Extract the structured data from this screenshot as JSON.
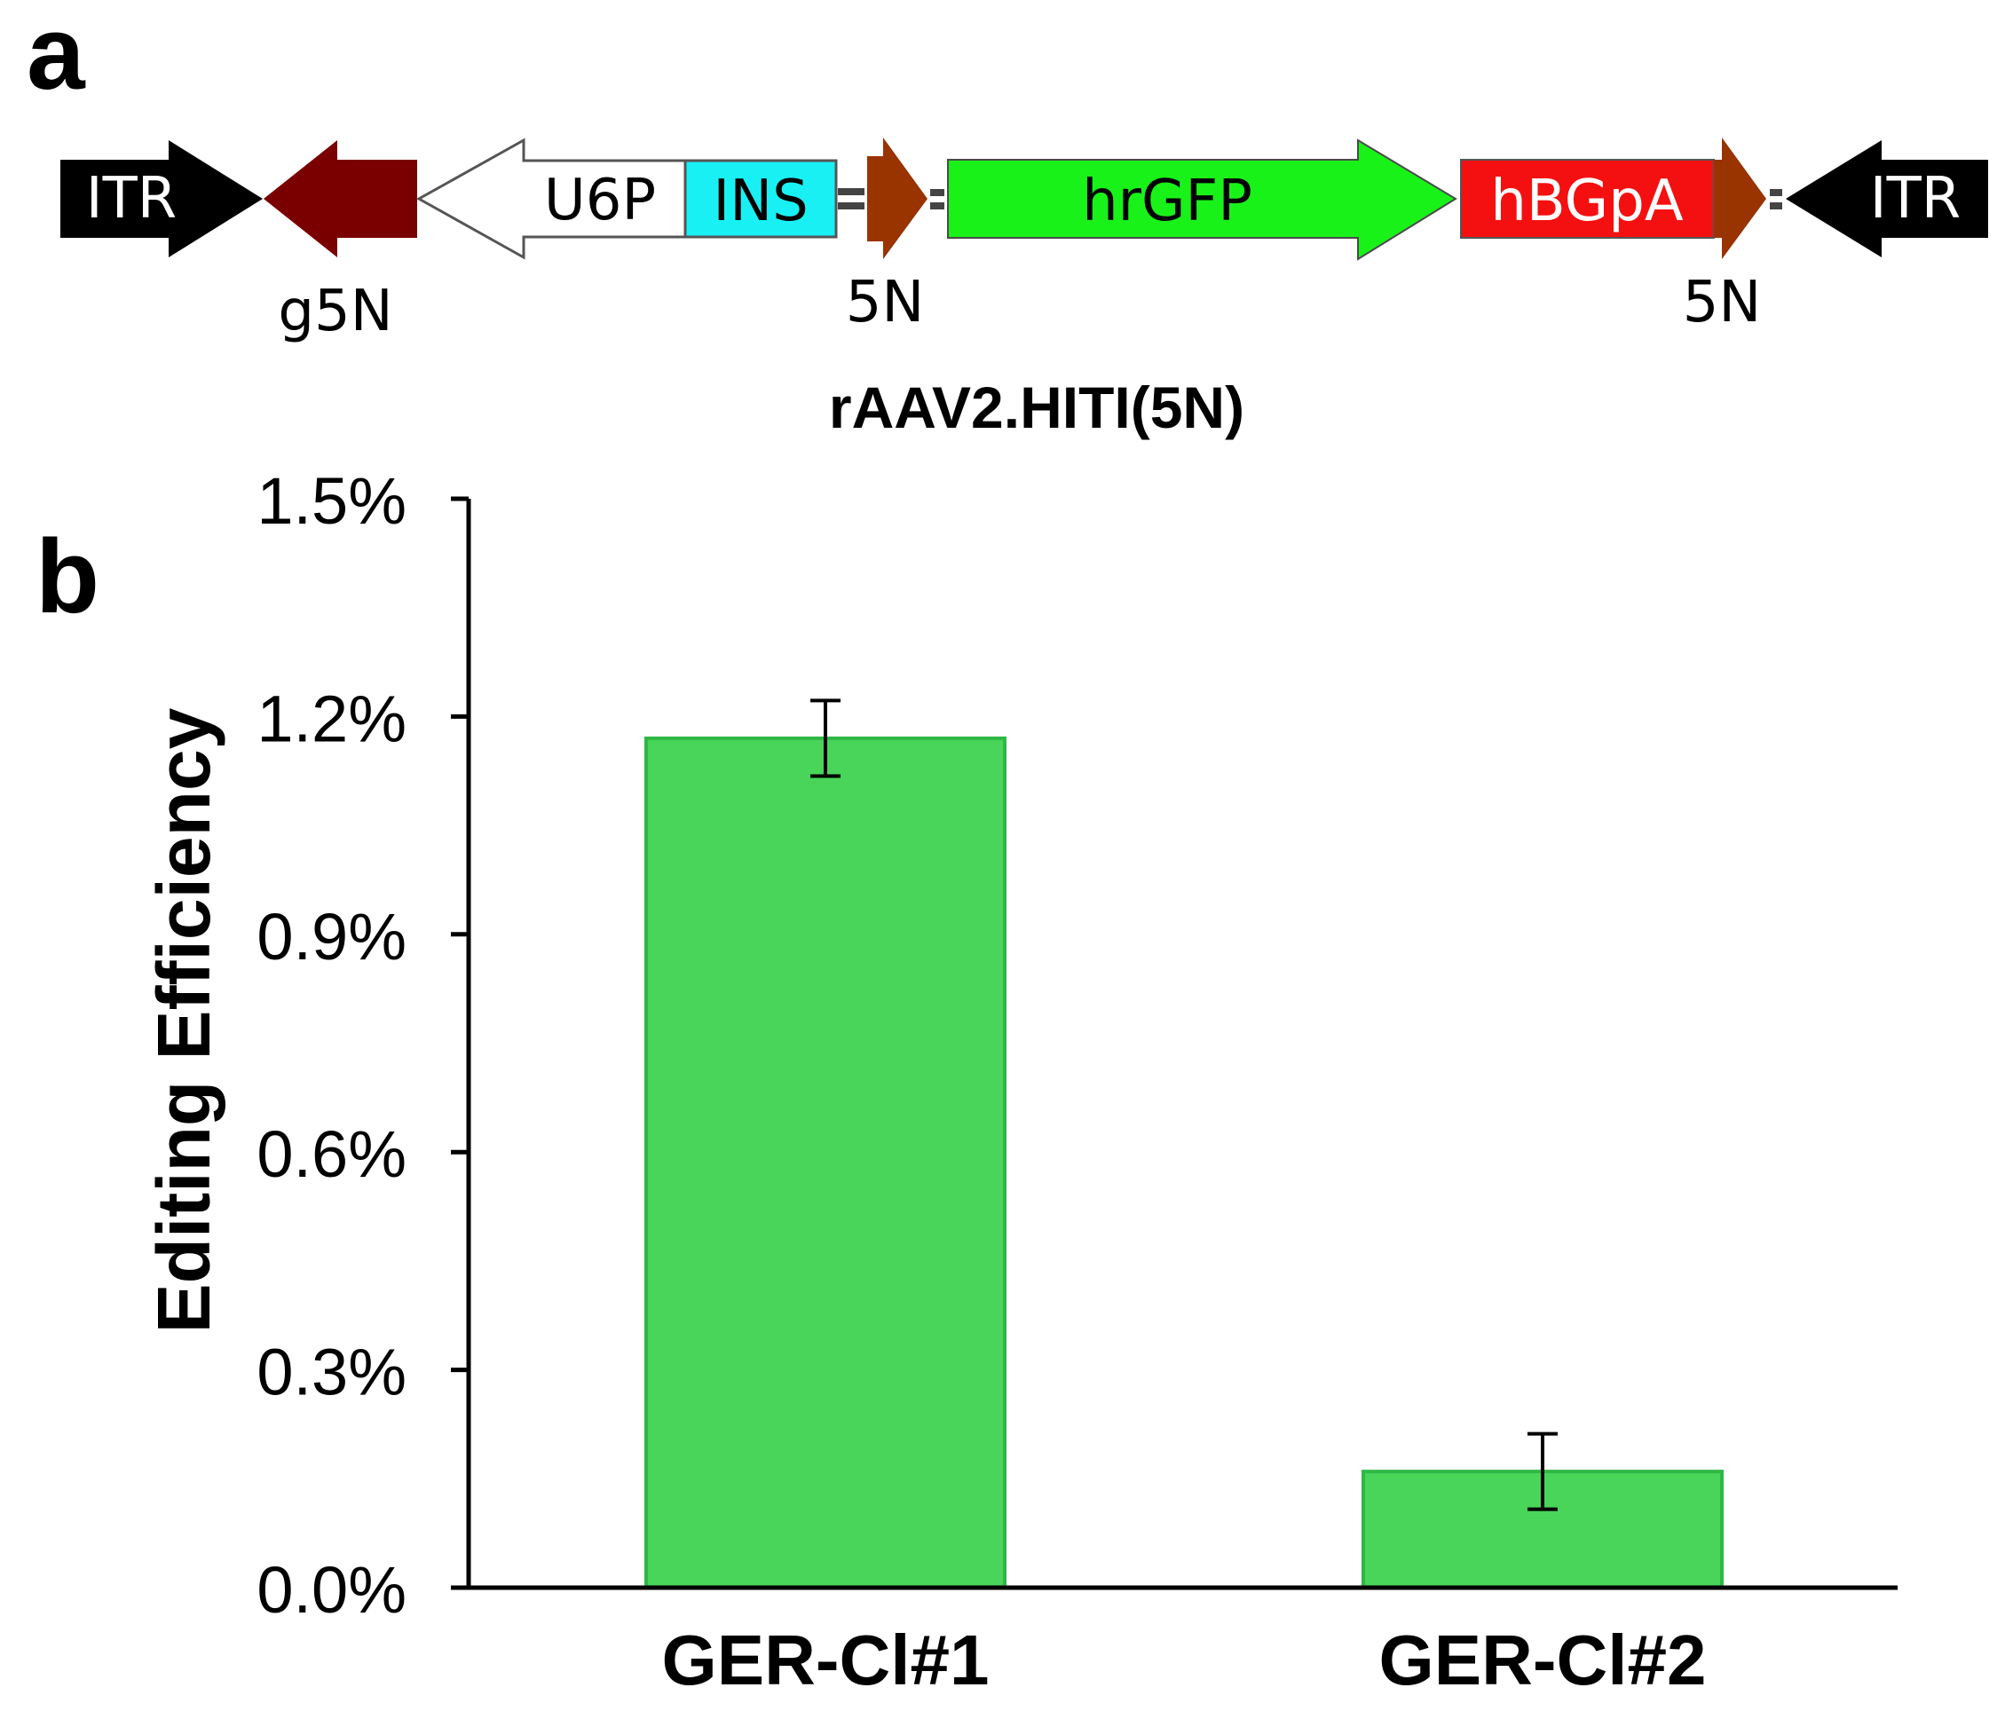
{
  "panel_a": {
    "label": "a",
    "title": "rAAV2.HITI(5N)",
    "elements": [
      {
        "id": "itr-left",
        "text": "ITR",
        "color": "#000000",
        "text_color": "#ffffff",
        "direction": "right"
      },
      {
        "id": "g5n-arrow",
        "text": "",
        "color": "#7a0000",
        "direction": "left"
      },
      {
        "id": "u6p",
        "text": "U6P",
        "color": "#ffffff",
        "text_color": "#000000",
        "direction": "left"
      },
      {
        "id": "ins",
        "text": "INS",
        "color": "#19f0f4",
        "text_color": "#000000"
      },
      {
        "id": "5n-site-1",
        "text": "",
        "color": "#993300",
        "direction": "right"
      },
      {
        "id": "hrgfp",
        "text": "hrGFP",
        "color": "#19f219",
        "text_color": "#000000",
        "direction": "right"
      },
      {
        "id": "hbgpa",
        "text": "hBGpA",
        "color": "#f41010",
        "text_color": "#ffffff"
      },
      {
        "id": "5n-site-2",
        "text": "",
        "color": "#993300",
        "direction": "right"
      },
      {
        "id": "itr-right",
        "text": "ITR",
        "color": "#000000",
        "text_color": "#ffffff",
        "direction": "left"
      }
    ],
    "sublabels": {
      "g5n": "g5N",
      "site1": "5N",
      "site2": "5N"
    }
  },
  "panel_b": {
    "label": "b",
    "chart_data": {
      "type": "bar",
      "categories": [
        "GER-Cl#1",
        "GER-Cl#2"
      ],
      "values": [
        1.17,
        0.16
      ],
      "errors": [
        0.052,
        0.052
      ],
      "ylabel": "Editing Efficiency",
      "ylim": [
        0,
        1.5
      ],
      "yticks": [
        "0.0%",
        "0.3%",
        "0.6%",
        "0.9%",
        "1.2%",
        "1.5%"
      ],
      "ytick_values": [
        0,
        0.3,
        0.6,
        0.9,
        1.2,
        1.5
      ],
      "bar_color": "#48d55a",
      "bar_edge_color": "#2fb845",
      "grid": false,
      "legend": "none"
    }
  }
}
